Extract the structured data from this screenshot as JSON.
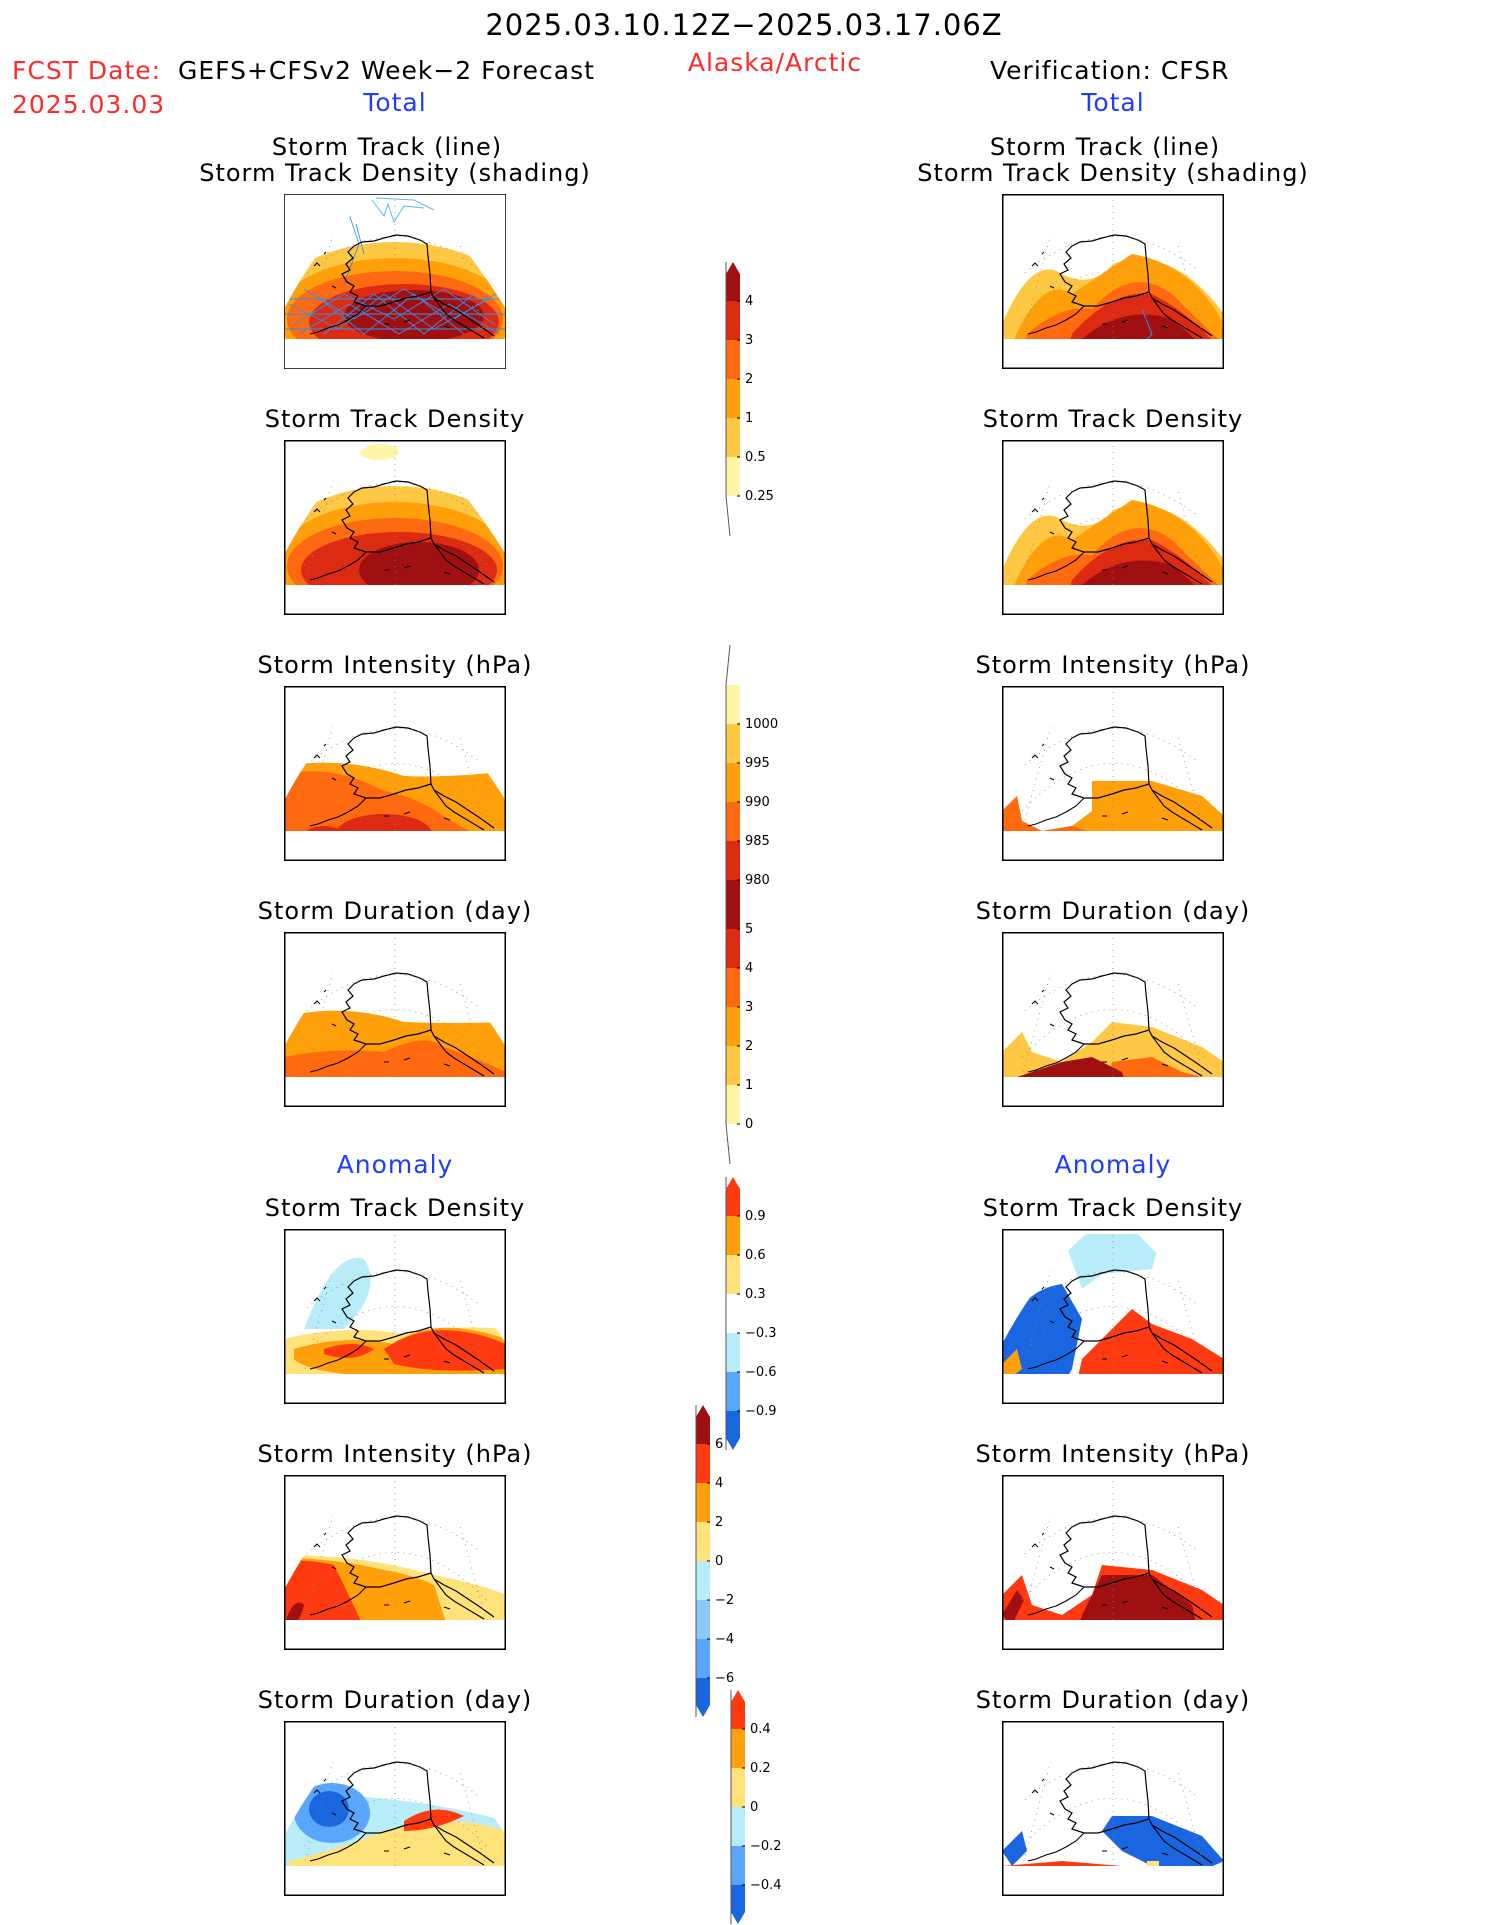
{
  "title": "2025.03.10.12Z−2025.03.17.06Z",
  "fcst_label": "FCST Date:",
  "fcst_model": "GEFS+CFSv2 Week−2 Forecast",
  "fcst_date": "2025.03.03",
  "region": "Alaska/Arctic",
  "verification": "Verification: CFSR",
  "section_total": "Total",
  "section_anomaly": "Anomaly",
  "panels": {
    "track_line": "Storm Track (line)",
    "track_shade": "Storm Track Density (shading)",
    "density": "Storm Track Density",
    "intensity": "Storm Intensity (hPa)",
    "duration": "Storm Duration (day)"
  },
  "colorbars": [
    {
      "name": "total-density-colorbar",
      "labels": [
        "4",
        "3",
        "2",
        "1",
        "0.5",
        "0.25"
      ],
      "colors": [
        "#a01010",
        "#dd2a12",
        "#ff6a10",
        "#ffa00a",
        "#ffc844",
        "#fff5a8"
      ]
    },
    {
      "name": "total-intensity-colorbar",
      "labels": [
        "1000",
        "995",
        "990",
        "985",
        "980"
      ],
      "colors": [
        "#fff5a8",
        "#ffc844",
        "#ffa00a",
        "#ff6a10",
        "#dd2a12",
        "#a01010"
      ]
    },
    {
      "name": "total-duration-colorbar",
      "labels": [
        "5",
        "4",
        "3",
        "2",
        "1",
        "0"
      ],
      "colors": [
        "#a01010",
        "#dd2a12",
        "#ff6a10",
        "#ffa00a",
        "#ffc844",
        "#fff5a8"
      ]
    },
    {
      "name": "anomaly-density-colorbar",
      "labels": [
        "0.9",
        "0.6",
        "0.3",
        "−0.3",
        "−0.6",
        "−0.9"
      ],
      "colors": [
        "#ff3a10",
        "#ffa00a",
        "#ffe27a",
        "#ffffff",
        "#b8ecf8",
        "#5aa6ff",
        "#1a66e0"
      ]
    },
    {
      "name": "anomaly-intensity-colorbar",
      "labels": [
        "6",
        "4",
        "2",
        "0",
        "−2",
        "−4",
        "−6"
      ],
      "colors": [
        "#a01010",
        "#ff3a10",
        "#ffa00a",
        "#ffe27a",
        "#b8ecf8",
        "#8ac8f8",
        "#5aa6ff",
        "#1a66e0"
      ]
    },
    {
      "name": "anomaly-duration-colorbar",
      "labels": [
        "0.4",
        "0.2",
        "0",
        "−0.2",
        "−0.4"
      ],
      "colors": [
        "#ff3a10",
        "#ffa00a",
        "#ffe27a",
        "#b8ecf8",
        "#5aa6ff",
        "#1a66e0"
      ]
    }
  ]
}
